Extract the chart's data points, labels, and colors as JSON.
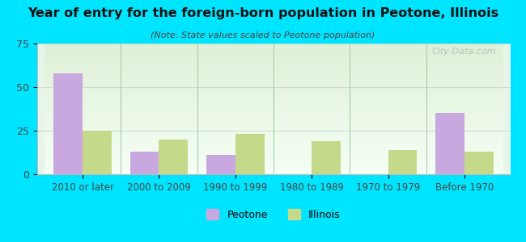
{
  "title": "Year of entry for the foreign-born population in Peotone, Illinois",
  "subtitle": "(Note: State values scaled to Peotone population)",
  "categories": [
    "2010 or later",
    "2000 to 2009",
    "1990 to 1999",
    "1980 to 1989",
    "1970 to 1979",
    "Before 1970"
  ],
  "peotone_values": [
    58,
    13,
    11,
    0,
    0,
    35
  ],
  "illinois_values": [
    25,
    20,
    23,
    19,
    14,
    13
  ],
  "peotone_color": "#c9a8e0",
  "illinois_color": "#c5d98a",
  "background_outer": "#00e5ff",
  "background_inner_top": "#e8f5e0",
  "background_inner_bottom": "#ffffff",
  "ylim": [
    0,
    75
  ],
  "yticks": [
    0,
    25,
    50,
    75
  ],
  "bar_width": 0.38,
  "legend_peotone": "Peotone",
  "legend_illinois": "Illinois",
  "watermark": "City-Data.com"
}
